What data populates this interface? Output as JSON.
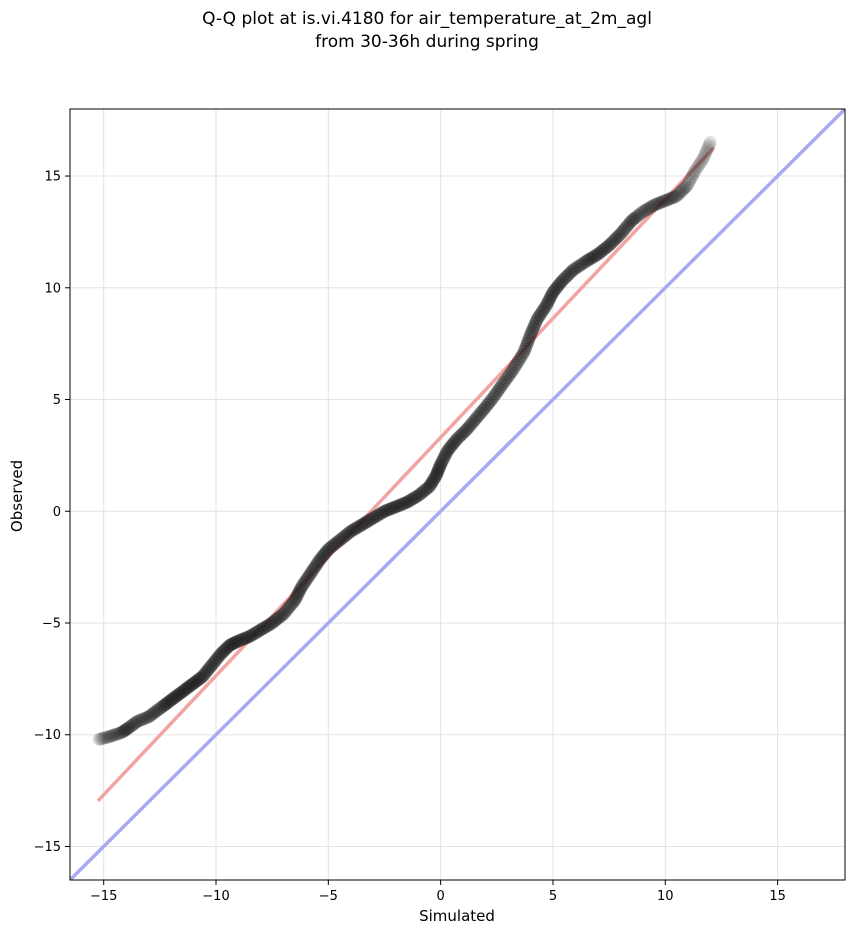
{
  "chart_data": {
    "type": "scatter",
    "title": [
      "Q-Q plot at is.vi.4180 for air_temperature_at_2m_agl",
      "from 30-36h during spring"
    ],
    "xlabel": "Simulated",
    "ylabel": "Observed",
    "xlim": [
      -16.5,
      18
    ],
    "ylim": [
      -16.5,
      18
    ],
    "xticks": [
      -15,
      -10,
      -5,
      0,
      5,
      10,
      15
    ],
    "yticks": [
      -15,
      -10,
      -5,
      0,
      5,
      10,
      15
    ],
    "xtick_labels": [
      "−15",
      "−10",
      "−5",
      "0",
      "5",
      "10",
      "15"
    ],
    "ytick_labels": [
      "−15",
      "−10",
      "−5",
      "0",
      "5",
      "10",
      "15"
    ],
    "grid": true,
    "point_color": "#1a1a1a",
    "quantile_curve": [
      [
        -15.2,
        -10.2
      ],
      [
        -14.8,
        -10.1
      ],
      [
        -14.5,
        -10.0
      ],
      [
        -14.2,
        -9.9
      ],
      [
        -13.9,
        -9.7
      ],
      [
        -13.5,
        -9.4
      ],
      [
        -13.0,
        -9.2
      ],
      [
        -12.6,
        -8.9
      ],
      [
        -12.2,
        -8.6
      ],
      [
        -11.8,
        -8.3
      ],
      [
        -11.4,
        -8.0
      ],
      [
        -11.0,
        -7.7
      ],
      [
        -10.6,
        -7.4
      ],
      [
        -10.2,
        -6.9
      ],
      [
        -9.8,
        -6.4
      ],
      [
        -9.4,
        -6.0
      ],
      [
        -9.0,
        -5.8
      ],
      [
        -8.5,
        -5.6
      ],
      [
        -8.0,
        -5.3
      ],
      [
        -7.5,
        -5.0
      ],
      [
        -7.0,
        -4.6
      ],
      [
        -6.5,
        -4.0
      ],
      [
        -6.2,
        -3.4
      ],
      [
        -5.8,
        -2.8
      ],
      [
        -5.4,
        -2.2
      ],
      [
        -5.0,
        -1.7
      ],
      [
        -4.5,
        -1.3
      ],
      [
        -4.0,
        -0.9
      ],
      [
        -3.5,
        -0.6
      ],
      [
        -3.0,
        -0.3
      ],
      [
        -2.5,
        0.0
      ],
      [
        -2.0,
        0.2
      ],
      [
        -1.5,
        0.4
      ],
      [
        -1.0,
        0.7
      ],
      [
        -0.5,
        1.1
      ],
      [
        -0.2,
        1.6
      ],
      [
        0.0,
        2.1
      ],
      [
        0.3,
        2.7
      ],
      [
        0.7,
        3.2
      ],
      [
        1.2,
        3.7
      ],
      [
        1.7,
        4.3
      ],
      [
        2.2,
        4.9
      ],
      [
        2.7,
        5.6
      ],
      [
        3.2,
        6.3
      ],
      [
        3.7,
        7.1
      ],
      [
        4.0,
        7.9
      ],
      [
        4.3,
        8.6
      ],
      [
        4.7,
        9.2
      ],
      [
        5.0,
        9.8
      ],
      [
        5.4,
        10.3
      ],
      [
        5.9,
        10.8
      ],
      [
        6.5,
        11.2
      ],
      [
        7.0,
        11.5
      ],
      [
        7.5,
        11.9
      ],
      [
        8.0,
        12.4
      ],
      [
        8.5,
        13.0
      ],
      [
        9.0,
        13.4
      ],
      [
        9.5,
        13.7
      ],
      [
        10.0,
        13.9
      ],
      [
        10.5,
        14.1
      ],
      [
        11.0,
        14.6
      ],
      [
        11.3,
        15.2
      ],
      [
        11.7,
        15.8
      ],
      [
        12.0,
        16.5
      ]
    ],
    "reference_lines": [
      {
        "kind": "fit",
        "color": "#f4a3a3",
        "points": [
          [
            -15.2,
            -12.9
          ],
          [
            12.1,
            16.2
          ]
        ]
      },
      {
        "kind": "identity",
        "color": "#a9a9f3",
        "points": [
          [
            -16.5,
            -16.5
          ],
          [
            18,
            18
          ]
        ]
      }
    ]
  }
}
